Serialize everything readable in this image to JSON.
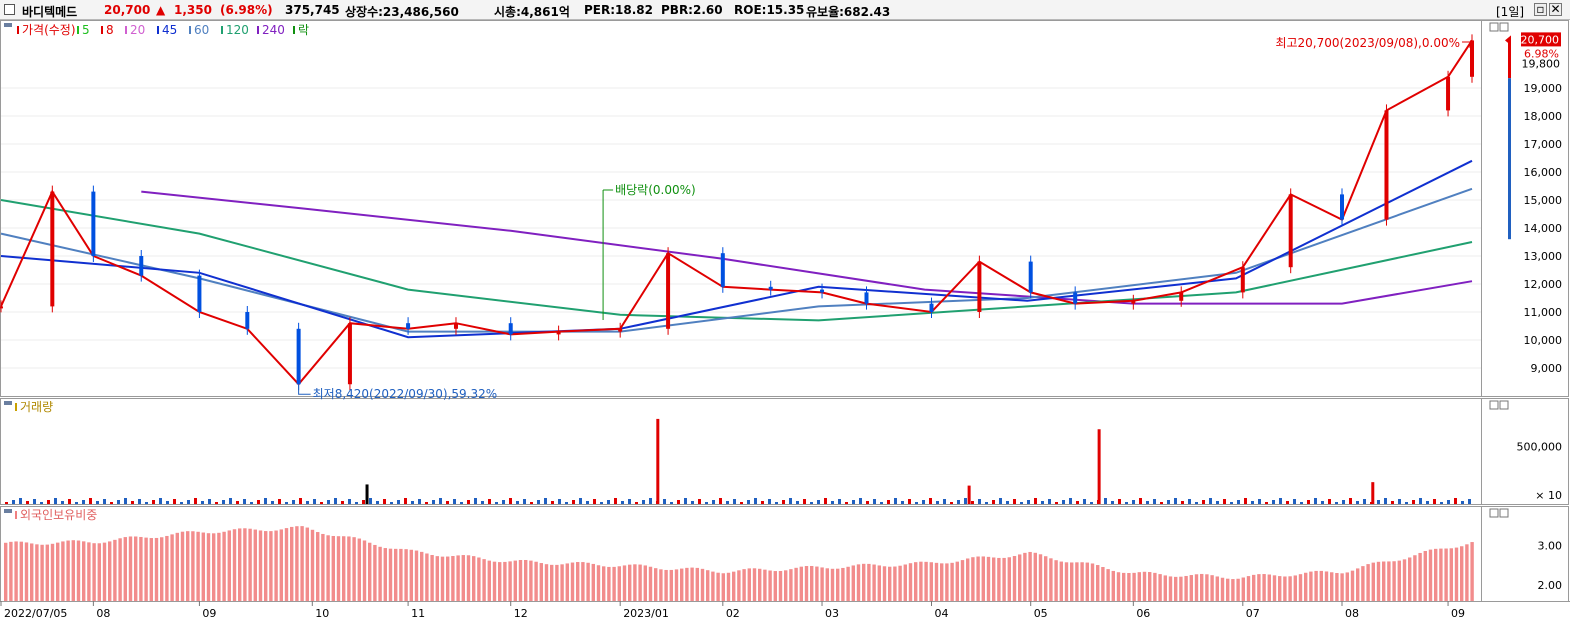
{
  "header": {
    "stock_name": "바디텍메드",
    "price": "20,700",
    "change_arrow": "▲",
    "change": "1,350",
    "change_pct": "(6.98%)",
    "volume": "375,745",
    "listed_shares": "상장수:23,486,560",
    "market_cap": "시총:4,861억",
    "per": "PER:18.82",
    "pbr": "PBR:2.60",
    "roe": "ROE:15.35",
    "float_rate": "유보율:682.43",
    "period": "[1일]",
    "colors": {
      "up": "#e00000",
      "down": "#0050e0"
    }
  },
  "price_panel": {
    "legend": [
      {
        "label": "가격(수정)",
        "color": "#e00000"
      },
      {
        "label": "5",
        "color": "#1fbf1f"
      },
      {
        "label": "8",
        "color": "#e00000"
      },
      {
        "label": "20",
        "color": "#d060d0"
      },
      {
        "label": "45",
        "color": "#1030d0"
      },
      {
        "label": "60",
        "color": "#5080c0"
      },
      {
        "label": "120",
        "color": "#20a070"
      },
      {
        "label": "240",
        "color": "#8020c0"
      },
      {
        "label": "락",
        "color": "#109010"
      }
    ],
    "y_ticks": [
      "19,000",
      "18,000",
      "17,000",
      "16,000",
      "15,000",
      "14,000",
      "13,000",
      "12,000",
      "11,000",
      "10,000",
      "9,000"
    ],
    "high_annotation": "최고20,700(2023/09/08),0.00%",
    "low_annotation": "최저8,420(2022/09/30),59.32%",
    "dividend_annotation": "배당락(0.00%)",
    "current_price_label": "20,700",
    "current_pct_label": "6.98%",
    "partial_tick": "19,800"
  },
  "volume_panel": {
    "title": "거래량",
    "y_ticks": [
      "500,000"
    ],
    "multiplier": "× 10"
  },
  "foreign_panel": {
    "title": "외국인보유비중",
    "y_ticks": [
      "3.00",
      "2.00"
    ]
  },
  "x_axis": {
    "labels": [
      "2022/07/05",
      "08",
      "09",
      "10",
      "11",
      "12",
      "2023/01",
      "02",
      "03",
      "04",
      "05",
      "06",
      "07",
      "08",
      "09"
    ]
  },
  "chart_data": {
    "type": "line",
    "series": [
      {
        "name": "가격(수정)",
        "x": [
          "2022/07/05",
          "2022/07/20",
          "2022/08/01",
          "2022/08/15",
          "2022/09/01",
          "2022/09/15",
          "2022/09/30",
          "2022/10/15",
          "2022/11/01",
          "2022/11/15",
          "2022/12/01",
          "2022/12/15",
          "2023/01/02",
          "2023/01/16",
          "2023/02/01",
          "2023/02/15",
          "2023/03/02",
          "2023/03/15",
          "2023/04/03",
          "2023/04/17",
          "2023/05/02",
          "2023/05/15",
          "2023/06/01",
          "2023/06/15",
          "2023/07/03",
          "2023/07/17",
          "2023/08/01",
          "2023/08/14",
          "2023/09/01",
          "2023/09/08"
        ],
        "values": [
          11200,
          15300,
          13000,
          12300,
          11000,
          10400,
          8420,
          10600,
          10400,
          10600,
          10200,
          10300,
          10400,
          13100,
          11900,
          11800,
          11700,
          11300,
          11000,
          12800,
          11700,
          11300,
          11400,
          11700,
          12600,
          15200,
          14300,
          18200,
          19400,
          20700
        ]
      },
      {
        "name": "240",
        "x": [
          "2022/08/15",
          "2022/10/01",
          "2022/12/01",
          "2023/02/01",
          "2023/04/01",
          "2023/06/01",
          "2023/08/01",
          "2023/09/08"
        ],
        "values": [
          15300,
          14700,
          13900,
          12900,
          11800,
          11300,
          11300,
          12100
        ]
      },
      {
        "name": "120",
        "x": [
          "2022/07/05",
          "2022/09/01",
          "2022/11/01",
          "2023/01/02",
          "2023/03/01",
          "2023/05/01",
          "2023/07/01",
          "2023/09/08"
        ],
        "values": [
          15000,
          13800,
          11800,
          10900,
          10700,
          11200,
          11700,
          13500
        ]
      },
      {
        "name": "60",
        "x": [
          "2022/07/05",
          "2022/09/01",
          "2022/11/01",
          "2023/01/02",
          "2023/03/01",
          "2023/05/01",
          "2023/07/01",
          "2023/09/08"
        ],
        "values": [
          13800,
          12200,
          10300,
          10300,
          11200,
          11500,
          12400,
          15400
        ]
      },
      {
        "name": "45",
        "x": [
          "2022/07/05",
          "2022/09/01",
          "2022/11/01",
          "2023/01/02",
          "2023/03/01",
          "2023/05/01",
          "2023/07/01",
          "2023/09/08"
        ],
        "values": [
          13000,
          12400,
          10100,
          10400,
          11900,
          11400,
          12200,
          16400
        ]
      }
    ],
    "volume": {
      "peaks": [
        {
          "x": "2023/01/13",
          "value": 740000
        },
        {
          "x": "2023/05/22",
          "value": 650000
        },
        {
          "x": "2022/10/20",
          "value": 170000
        },
        {
          "x": "2023/04/14",
          "value": 160000
        },
        {
          "x": "2023/08/10",
          "value": 190000
        }
      ]
    },
    "foreign_ratio": {
      "x": [
        "2022/07/05",
        "2022/08/01",
        "2022/09/01",
        "2022/10/01",
        "2022/11/01",
        "2022/12/01",
        "2023/01/02",
        "2023/02/01",
        "2023/03/01",
        "2023/04/01",
        "2023/05/01",
        "2023/06/01",
        "2023/07/01",
        "2023/08/01",
        "2023/09/08"
      ],
      "values": [
        3.05,
        3.1,
        3.35,
        3.45,
        2.85,
        2.6,
        2.5,
        2.35,
        2.45,
        2.55,
        2.8,
        2.3,
        2.2,
        2.35,
        3.1
      ]
    },
    "ylim": [
      8000,
      21000
    ]
  }
}
